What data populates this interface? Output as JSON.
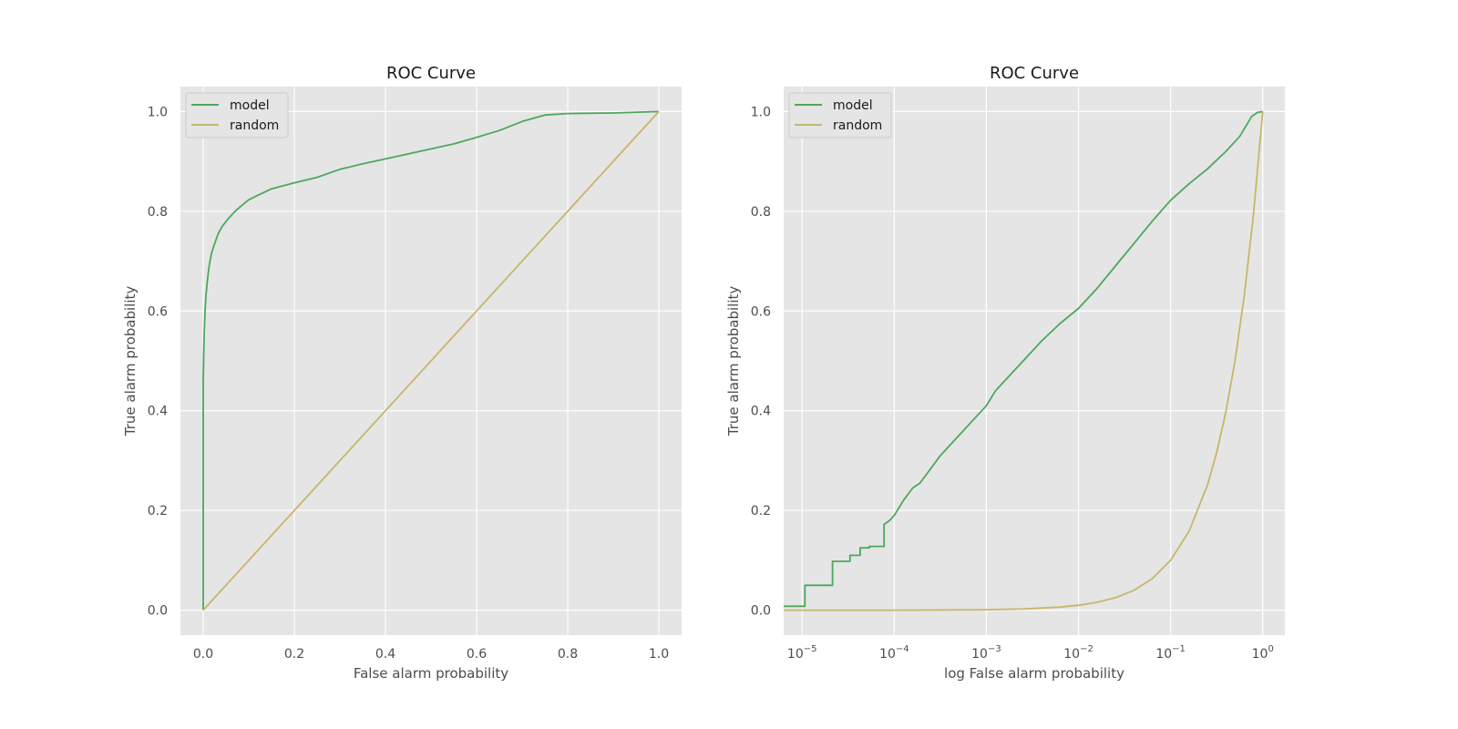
{
  "chart_data": [
    {
      "type": "line",
      "title": "ROC Curve",
      "xlabel": "False alarm probability",
      "ylabel": "True alarm probability",
      "xscale": "linear",
      "xlim": [
        -0.05,
        1.05
      ],
      "ylim": [
        -0.05,
        1.05
      ],
      "xticks": [
        0.0,
        0.2,
        0.4,
        0.6,
        0.8,
        1.0
      ],
      "xtick_labels": [
        "0.0",
        "0.2",
        "0.4",
        "0.6",
        "0.8",
        "1.0"
      ],
      "yticks": [
        0.0,
        0.2,
        0.4,
        0.6,
        0.8,
        1.0
      ],
      "ytick_labels": [
        "0.0",
        "0.2",
        "0.4",
        "0.6",
        "0.8",
        "1.0"
      ],
      "grid": true,
      "legend_position": "top-left",
      "series": [
        {
          "name": "model",
          "color": "#4da75e",
          "x": [
            0.0,
            0.0,
            0.002,
            0.004,
            0.006,
            0.009,
            0.013,
            0.018,
            0.025,
            0.033,
            0.042,
            0.055,
            0.07,
            0.085,
            0.1,
            0.12,
            0.15,
            0.2,
            0.25,
            0.3,
            0.35,
            0.4,
            0.45,
            0.5,
            0.55,
            0.6,
            0.65,
            0.7,
            0.75,
            0.8,
            0.9,
            1.0
          ],
          "y": [
            0.0,
            0.46,
            0.55,
            0.6,
            0.63,
            0.66,
            0.69,
            0.715,
            0.735,
            0.755,
            0.77,
            0.785,
            0.8,
            0.812,
            0.823,
            0.832,
            0.845,
            0.857,
            0.868,
            0.884,
            0.895,
            0.905,
            0.915,
            0.925,
            0.935,
            0.948,
            0.962,
            0.98,
            0.993,
            0.996,
            0.997,
            1.0
          ]
        },
        {
          "name": "random",
          "color": "#c8b56a",
          "x": [
            0.0,
            1.0
          ],
          "y": [
            0.0,
            1.0
          ]
        }
      ]
    },
    {
      "type": "line",
      "title": "ROC Curve",
      "xlabel": "log False alarm probability",
      "ylabel": "True alarm probability",
      "xscale": "log",
      "xlim_exp": [
        -5.2,
        0.24
      ],
      "ylim": [
        -0.05,
        1.05
      ],
      "xticks_exp": [
        -5,
        -4,
        -3,
        -2,
        -1,
        0
      ],
      "xtick_labels": [
        {
          "base": "10",
          "exp": "−5"
        },
        {
          "base": "10",
          "exp": "−4"
        },
        {
          "base": "10",
          "exp": "−3"
        },
        {
          "base": "10",
          "exp": "−2"
        },
        {
          "base": "10",
          "exp": "−1"
        },
        {
          "base": "10",
          "exp": "0"
        }
      ],
      "yticks": [
        0.0,
        0.2,
        0.4,
        0.6,
        0.8,
        1.0
      ],
      "ytick_labels": [
        "0.0",
        "0.2",
        "0.4",
        "0.6",
        "0.8",
        "1.0"
      ],
      "grid": true,
      "legend_position": "top-left",
      "series": [
        {
          "name": "model",
          "color": "#4da75e",
          "log10_x": [
            -5.2,
            -4.97,
            -4.97,
            -4.67,
            -4.67,
            -4.48,
            -4.48,
            -4.37,
            -4.37,
            -4.27,
            -4.27,
            -4.11,
            -4.11,
            -4.05,
            -4.0,
            -3.95,
            -3.9,
            -3.8,
            -3.72,
            -3.6,
            -3.5,
            -3.4,
            -3.25,
            -3.1,
            -3.0,
            -2.9,
            -2.75,
            -2.6,
            -2.4,
            -2.2,
            -2.0,
            -1.8,
            -1.6,
            -1.4,
            -1.2,
            -1.0,
            -0.8,
            -0.6,
            -0.4,
            -0.25,
            -0.12,
            -0.06,
            0.0
          ],
          "y": [
            0.008,
            0.008,
            0.05,
            0.05,
            0.098,
            0.098,
            0.11,
            0.11,
            0.125,
            0.125,
            0.128,
            0.128,
            0.172,
            0.18,
            0.19,
            0.205,
            0.22,
            0.245,
            0.255,
            0.285,
            0.31,
            0.33,
            0.36,
            0.39,
            0.41,
            0.44,
            0.47,
            0.5,
            0.54,
            0.575,
            0.605,
            0.645,
            0.69,
            0.735,
            0.78,
            0.822,
            0.855,
            0.885,
            0.92,
            0.95,
            0.99,
            0.998,
            1.0
          ]
        },
        {
          "name": "random",
          "color": "#c8b56a",
          "log10_x": [
            -5.2,
            -4.0,
            -3.0,
            -2.6,
            -2.2,
            -2.0,
            -1.8,
            -1.6,
            -1.4,
            -1.2,
            -1.0,
            -0.8,
            -0.6,
            -0.5,
            -0.4,
            -0.3,
            -0.2,
            -0.1,
            0.0
          ],
          "y": [
            0.0,
            0.0001,
            0.001,
            0.0025,
            0.0063,
            0.01,
            0.0158,
            0.0251,
            0.0398,
            0.0631,
            0.1,
            0.1585,
            0.2512,
            0.3162,
            0.3981,
            0.5012,
            0.631,
            0.7943,
            1.0
          ]
        }
      ]
    }
  ]
}
